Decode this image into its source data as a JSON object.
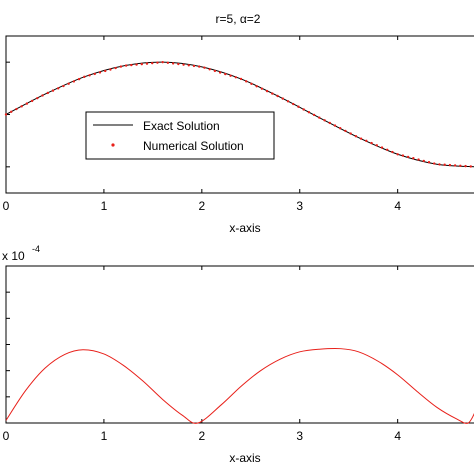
{
  "chart_data": [
    {
      "type": "line",
      "title": "r=5, α=2",
      "xlabel": "x-axis",
      "ylabel": "",
      "xlim": [
        0,
        4.8
      ],
      "ylim": [
        -1.5,
        1.5
      ],
      "xticks": [
        "0",
        "1",
        "2",
        "3",
        "4"
      ],
      "grid": false,
      "legend_position": "center-left",
      "series": [
        {
          "name": "Exact Solution",
          "style": "line",
          "color": "#000000",
          "x": [
            0,
            0.4,
            0.8,
            1.2,
            1.6,
            2.0,
            2.4,
            2.8,
            3.2,
            3.6,
            4.0,
            4.4,
            4.8
          ],
          "y": [
            0.0,
            0.39,
            0.72,
            0.93,
            1.0,
            0.91,
            0.68,
            0.33,
            -0.06,
            -0.44,
            -0.76,
            -0.95,
            -1.0
          ]
        },
        {
          "name": "Numerical Solution",
          "style": "markers",
          "color": "#e8201a",
          "x": [
            0,
            0.4,
            0.8,
            1.2,
            1.6,
            2.0,
            2.4,
            2.8,
            3.2,
            3.6,
            4.0,
            4.4,
            4.8
          ],
          "y": [
            0.0,
            0.39,
            0.72,
            0.93,
            1.0,
            0.91,
            0.68,
            0.33,
            -0.06,
            -0.44,
            -0.76,
            -0.95,
            -1.0
          ]
        }
      ]
    },
    {
      "type": "line",
      "title": "",
      "xlabel": "x-axis",
      "ylabel": "",
      "exponent_label": "x 10",
      "exponent_power": "-4",
      "xlim": [
        0,
        4.8
      ],
      "ylim": [
        0,
        3.0
      ],
      "xticks": [
        "0",
        "1",
        "2",
        "3",
        "4"
      ],
      "grid": false,
      "series": [
        {
          "name": "",
          "style": "line",
          "color": "#e8201a",
          "x": [
            0,
            0.2,
            0.4,
            0.6,
            0.785,
            1.0,
            1.2,
            1.4,
            1.6,
            1.8,
            1.96,
            2.2,
            2.4,
            2.6,
            2.8,
            3.0,
            3.2,
            3.42,
            3.6,
            3.8,
            4.0,
            4.2,
            4.4,
            4.6,
            4.72,
            4.8
          ],
          "y": [
            0.05,
            0.62,
            1.05,
            1.31,
            1.4,
            1.32,
            1.1,
            0.8,
            0.45,
            0.15,
            0.0,
            0.35,
            0.7,
            1.0,
            1.22,
            1.36,
            1.41,
            1.42,
            1.36,
            1.18,
            0.92,
            0.6,
            0.3,
            0.08,
            0.0,
            0.25
          ]
        }
      ]
    }
  ]
}
